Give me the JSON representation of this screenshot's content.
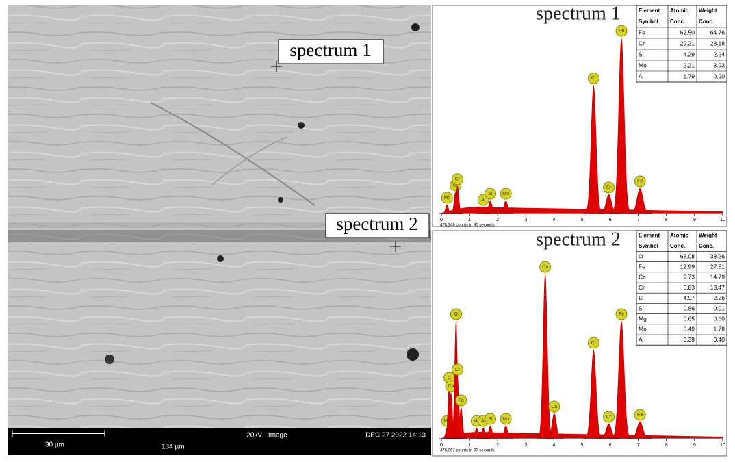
{
  "sem_image": {
    "labels": [
      "spectrum 1",
      "spectrum 2"
    ],
    "scale_bar": "30 µm",
    "mode": "20kV - Image",
    "date": "DEC 27 2022 14:13",
    "field": "134 µm"
  },
  "spectra": [
    {
      "title": "spectrum 1",
      "counts": "478,346 counts in 90 seconds",
      "table": {
        "header": [
          "Element Symbol",
          "Atomic Conc.",
          "Weight Conc."
        ],
        "rows": [
          [
            "Fe",
            "62.50",
            "64.76"
          ],
          [
            "Cr",
            "29.21",
            "28.18"
          ],
          [
            "Si",
            "4.29",
            "2.24"
          ],
          [
            "Mo",
            "2.21",
            "3.93"
          ],
          [
            "Al",
            "1.79",
            "0.90"
          ]
        ]
      },
      "xlim": [
        0,
        10
      ],
      "xticks": [
        0,
        1,
        2,
        3,
        4,
        5,
        6,
        7,
        8,
        9,
        10
      ],
      "ylim": [
        0,
        100
      ],
      "color": "#e00000",
      "peaks": [
        {
          "element": "Mo",
          "x": 0.2,
          "height": 4
        },
        {
          "element": "Cr",
          "x": 0.5,
          "height": 10
        },
        {
          "element": "Cr",
          "x": 0.57,
          "height": 13
        },
        {
          "element": "Al",
          "x": 1.49,
          "height": 3
        },
        {
          "element": "Si",
          "x": 1.74,
          "height": 6
        },
        {
          "element": "Mo",
          "x": 2.29,
          "height": 6
        },
        {
          "element": "Cr",
          "x": 5.41,
          "height": 62
        },
        {
          "element": "Cr",
          "x": 5.95,
          "height": 9
        },
        {
          "element": "Fe",
          "x": 6.4,
          "height": 85
        },
        {
          "element": "Fe",
          "x": 7.06,
          "height": 12
        }
      ]
    },
    {
      "title": "spectrum 2",
      "counts": "476,067 counts in 90 seconds",
      "table": {
        "header": [
          "Element Symbol",
          "Atomic Conc.",
          "Weight Conc."
        ],
        "rows": [
          [
            "O",
            "63.08",
            "38.26"
          ],
          [
            "Fe",
            "12.99",
            "27.51"
          ],
          [
            "Ca",
            "9.73",
            "14.79"
          ],
          [
            "Cr",
            "6.83",
            "13.47"
          ],
          [
            "C",
            "4.97",
            "2.26"
          ],
          [
            "Si",
            "0.86",
            "0.91"
          ],
          [
            "Mg",
            "0.65",
            "0.60"
          ],
          [
            "Mo",
            "0.49",
            "1.78"
          ],
          [
            "Al",
            "0.39",
            "0.40"
          ]
        ]
      },
      "xlim": [
        0,
        10
      ],
      "xticks": [
        0,
        1,
        2,
        3,
        4,
        5,
        6,
        7,
        8,
        9,
        10
      ],
      "ylim": [
        0,
        100
      ],
      "color": "#e00000",
      "peaks": [
        {
          "element": "Mo",
          "x": 0.2,
          "height": 5
        },
        {
          "element": "C",
          "x": 0.28,
          "height": 26
        },
        {
          "element": "Ca",
          "x": 0.34,
          "height": 22
        },
        {
          "element": "O",
          "x": 0.52,
          "height": 57
        },
        {
          "element": "Cr",
          "x": 0.57,
          "height": 30
        },
        {
          "element": "Fe",
          "x": 0.7,
          "height": 15
        },
        {
          "element": "Mg",
          "x": 1.25,
          "height": 5
        },
        {
          "element": "Al",
          "x": 1.49,
          "height": 5
        },
        {
          "element": "Si",
          "x": 1.74,
          "height": 6
        },
        {
          "element": "Mo",
          "x": 2.29,
          "height": 6
        },
        {
          "element": "Ca",
          "x": 3.69,
          "height": 80
        },
        {
          "element": "Ca",
          "x": 4.01,
          "height": 12
        },
        {
          "element": "Cr",
          "x": 5.41,
          "height": 43
        },
        {
          "element": "Cr",
          "x": 5.95,
          "height": 7
        },
        {
          "element": "Fe",
          "x": 6.4,
          "height": 57
        },
        {
          "element": "Fe",
          "x": 7.06,
          "height": 8
        }
      ]
    }
  ]
}
